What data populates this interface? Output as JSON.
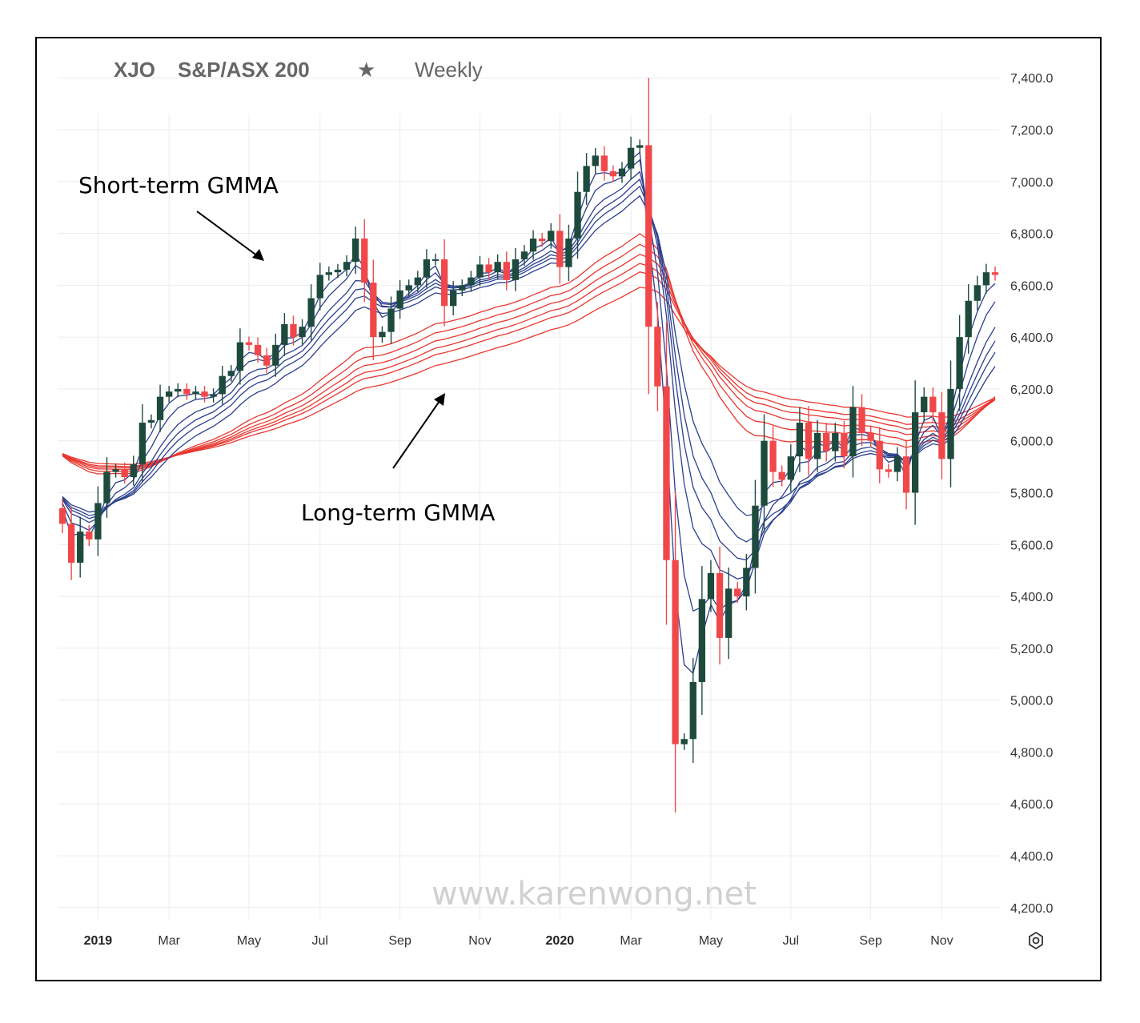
{
  "header": {
    "symbol": "XJO",
    "name": "S&P/ASX 200",
    "star": "★",
    "interval": "Weekly"
  },
  "watermark": "www.karenwong.net",
  "chart_data": {
    "type": "candlestick",
    "y_range": [
      4150,
      7450
    ],
    "y_ticks": [
      "7,400.0",
      "7,200.0",
      "7,000.0",
      "6,800.0",
      "6,600.0",
      "6,400.0",
      "6,200.0",
      "6,000.0",
      "5,800.0",
      "5,600.0",
      "5,400.0",
      "5,200.0",
      "5,000.0",
      "4,800.0",
      "4,600.0",
      "4,400.0",
      "4,200.0"
    ],
    "y_tick_values": [
      7400,
      7200,
      7000,
      6800,
      6600,
      6400,
      6200,
      6000,
      5800,
      5600,
      5400,
      5200,
      5000,
      4800,
      4600,
      4400,
      4200
    ],
    "x_ticks": [
      {
        "label": "2019",
        "bold": true,
        "week": 4
      },
      {
        "label": "Mar",
        "bold": false,
        "week": 12
      },
      {
        "label": "May",
        "bold": false,
        "week": 21
      },
      {
        "label": "Jul",
        "bold": false,
        "week": 29
      },
      {
        "label": "Sep",
        "bold": false,
        "week": 38
      },
      {
        "label": "Nov",
        "bold": false,
        "week": 47
      },
      {
        "label": "2020",
        "bold": true,
        "week": 56
      },
      {
        "label": "Mar",
        "bold": false,
        "week": 64
      },
      {
        "label": "May",
        "bold": false,
        "week": 73
      },
      {
        "label": "Jul",
        "bold": false,
        "week": 82
      },
      {
        "label": "Sep",
        "bold": false,
        "week": 91
      },
      {
        "label": "Nov",
        "bold": false,
        "week": 99
      }
    ],
    "closes": [
      5680,
      5530,
      5650,
      5620,
      5760,
      5880,
      5890,
      5860,
      5910,
      6070,
      6080,
      6170,
      6190,
      6200,
      6180,
      6190,
      6170,
      6180,
      6250,
      6270,
      6380,
      6370,
      6330,
      6290,
      6370,
      6450,
      6400,
      6440,
      6550,
      6640,
      6650,
      6660,
      6690,
      6780,
      6610,
      6400,
      6420,
      6510,
      6580,
      6600,
      6630,
      6700,
      6700,
      6520,
      6580,
      6600,
      6630,
      6680,
      6650,
      6690,
      6620,
      6700,
      6730,
      6780,
      6770,
      6810,
      6670,
      6780,
      6960,
      7060,
      7100,
      7040,
      7020,
      7050,
      7130,
      7140,
      6440,
      6210,
      5540,
      4830,
      4850,
      5070,
      5390,
      5490,
      5240,
      5430,
      5400,
      5510,
      5750,
      6000,
      5880,
      5850,
      5940,
      6070,
      5930,
      6030,
      5960,
      6030,
      5940,
      6130,
      6030,
      6000,
      5890,
      5880,
      5940,
      5800,
      6110,
      6170,
      6110,
      5930,
      6200,
      6400,
      6540,
      6600,
      6650,
      6640
    ],
    "short_term_gmma": {
      "periods": [
        3,
        5,
        8,
        10,
        12,
        15
      ],
      "color": "#1f3a93"
    },
    "long_term_gmma": {
      "periods": [
        30,
        35,
        40,
        45,
        50,
        60
      ],
      "color": "#e8362f"
    },
    "colors": {
      "up": "#1e4a3e",
      "down": "#f0484a",
      "short": "#2a3f8f",
      "long": "#e8362f",
      "grid": "#ececec"
    }
  },
  "annotations": {
    "short_term": "Short-term GMMA",
    "long_term": "Long-term GMMA"
  }
}
